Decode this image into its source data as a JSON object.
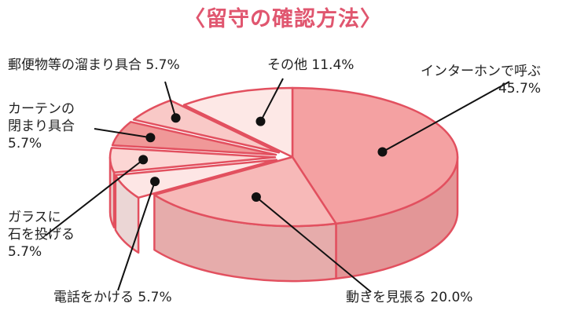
{
  "chart_data": {
    "type": "pie",
    "title": "〈留守の確認方法〉",
    "slices": [
      {
        "label": "インターホンで呼ぶ",
        "value": 45.7,
        "value_label": "45.7%",
        "color": "#f4a1a2"
      },
      {
        "label": "動きを見張る",
        "value": 20.0,
        "value_label": "20.0%",
        "color": "#f7b9b8"
      },
      {
        "label": "電話をかける",
        "value": 5.7,
        "value_label": "5.7%",
        "color": "#fde6e5"
      },
      {
        "label": "ガラスに石を投げる",
        "value": 5.7,
        "value_label": "5.7%",
        "color": "#fcd6d4"
      },
      {
        "label": "カーテンの閉まり具合",
        "value": 5.7,
        "value_label": "5.7%",
        "color": "#f09898"
      },
      {
        "label": "郵便物等の溜まり具合",
        "value": 5.7,
        "value_label": "5.7%",
        "color": "#f9c9c7"
      },
      {
        "label": "その他",
        "value": 11.4,
        "value_label": "11.4%",
        "color": "#fde8e6"
      }
    ],
    "outline_color": "#e2505f"
  },
  "labels": {
    "intercom_l1": "インターホンで呼ぶ",
    "intercom_l2": "45.7%",
    "watch": "動きを見張る 20.0%",
    "phone": "電話をかける 5.7%",
    "glass_l1": "ガラスに",
    "glass_l2": "石を投げる",
    "glass_l3": "5.7%",
    "curtain_l1": "カーテンの",
    "curtain_l2": "閉まり具合",
    "curtain_l3": "5.7%",
    "mail": "郵便物等の溜まり具合 5.7%",
    "other": "その他 11.4%"
  }
}
